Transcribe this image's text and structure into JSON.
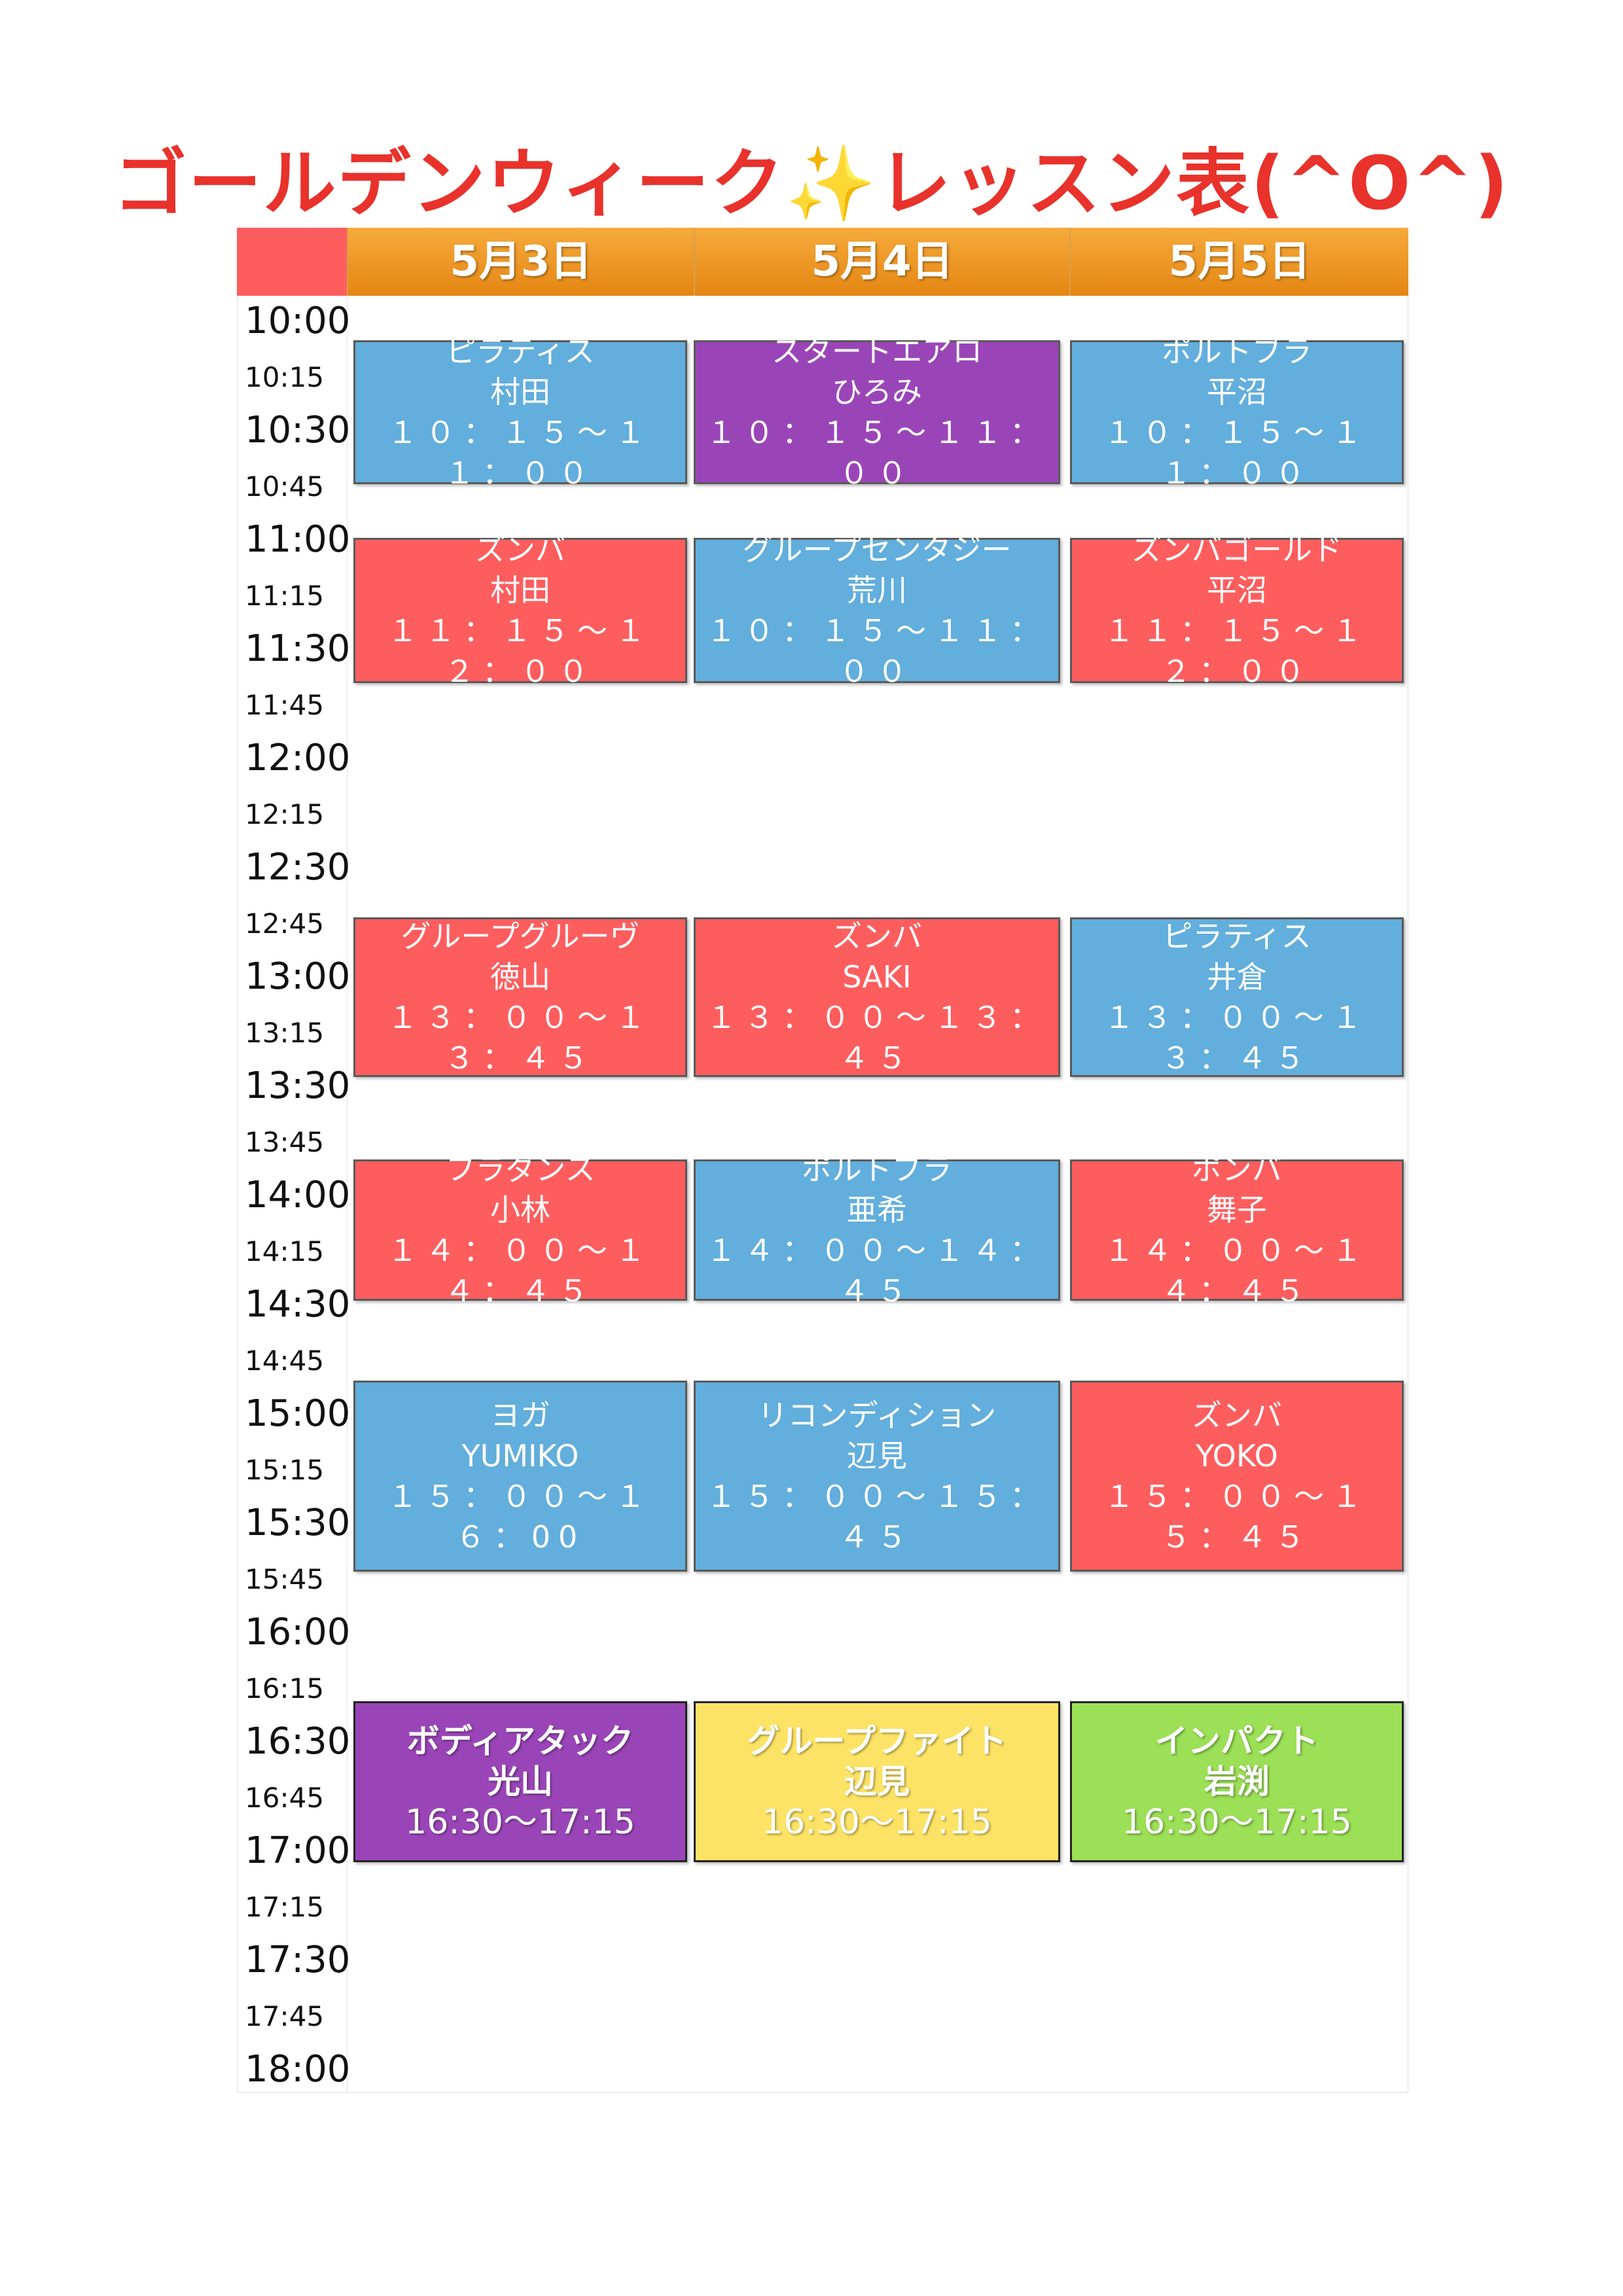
{
  "title": {
    "main": "ゴールデンウィーク",
    "sparkle": "✨",
    "suffix": "レッスン表(^O^)"
  },
  "days": [
    "5月3日",
    "5月4日",
    "5月5日"
  ],
  "times": [
    {
      "label": "10:00",
      "major": true
    },
    {
      "label": "10:15",
      "major": false
    },
    {
      "label": "10:30",
      "major": true
    },
    {
      "label": "10:45",
      "major": false
    },
    {
      "label": "11:00",
      "major": true
    },
    {
      "label": "11:15",
      "major": false
    },
    {
      "label": "11:30",
      "major": true
    },
    {
      "label": "11:45",
      "major": false
    },
    {
      "label": "12:00",
      "major": true
    },
    {
      "label": "12:15",
      "major": false
    },
    {
      "label": "12:30",
      "major": true
    },
    {
      "label": "12:45",
      "major": false
    },
    {
      "label": "13:00",
      "major": true
    },
    {
      "label": "13:15",
      "major": false
    },
    {
      "label": "13:30",
      "major": true
    },
    {
      "label": "13:45",
      "major": false
    },
    {
      "label": "14:00",
      "major": true
    },
    {
      "label": "14:15",
      "major": false
    },
    {
      "label": "14:30",
      "major": true
    },
    {
      "label": "14:45",
      "major": false
    },
    {
      "label": "15:00",
      "major": true
    },
    {
      "label": "15:15",
      "major": false
    },
    {
      "label": "15:30",
      "major": true
    },
    {
      "label": "15:45",
      "major": false
    },
    {
      "label": "16:00",
      "major": true
    },
    {
      "label": "16:15",
      "major": false
    },
    {
      "label": "16:30",
      "major": true
    },
    {
      "label": "16:45",
      "major": false
    },
    {
      "label": "17:00",
      "major": true
    },
    {
      "label": "17:15",
      "major": false
    },
    {
      "label": "17:30",
      "major": true
    },
    {
      "label": "17:45",
      "major": false
    },
    {
      "label": "18:00",
      "major": true
    }
  ],
  "lessons": [
    {
      "day": 0,
      "name": "ピラティス",
      "instructor": "村田",
      "time": "１０：１５〜１１：００",
      "color": "blue"
    },
    {
      "day": 1,
      "name": "スタートエアロ",
      "instructor": "ひろみ",
      "time": "１０：１５〜１１：００",
      "color": "purple"
    },
    {
      "day": 2,
      "name": "ポルトブラ",
      "instructor": "平沼",
      "time": "１０：１５〜１１：００",
      "color": "blue"
    },
    {
      "day": 0,
      "name": "ズンバ",
      "instructor": "村田",
      "time": "１１：１５〜１２：００",
      "color": "red"
    },
    {
      "day": 1,
      "name": "グループセンタジー",
      "instructor": "荒川",
      "time": "１０：１５〜１１：００",
      "color": "blue"
    },
    {
      "day": 2,
      "name": "ズンバゴールド",
      "instructor": "平沼",
      "time": "１１：１５〜１２：００",
      "color": "red"
    },
    {
      "day": 0,
      "name": "グループグルーヴ",
      "instructor": "徳山",
      "time": "１３：００〜１３：４５",
      "color": "red"
    },
    {
      "day": 1,
      "name": "ズンバ",
      "instructor": "SAKI",
      "time": "１３：００〜１３：４５",
      "color": "red"
    },
    {
      "day": 2,
      "name": "ピラティス",
      "instructor": "井倉",
      "time": "１３：００〜１３：４５",
      "color": "blue"
    },
    {
      "day": 0,
      "name": "フラダンス",
      "instructor": "小林",
      "time": "１４：００〜１４：４５",
      "color": "red"
    },
    {
      "day": 1,
      "name": "ポルトブラ",
      "instructor": "亜希",
      "time": "１４：００〜１４：４５",
      "color": "blue"
    },
    {
      "day": 2,
      "name": "ポンバ",
      "instructor": "舞子",
      "time": "１４：００〜１４：４５",
      "color": "red"
    },
    {
      "day": 0,
      "name": "ヨガ",
      "instructor": "YUMIKO",
      "time": "１５：００〜１６：00",
      "color": "blue"
    },
    {
      "day": 1,
      "name": "リコンディション",
      "instructor": "辺見",
      "time": "１５：００〜１５：４５",
      "color": "blue"
    },
    {
      "day": 2,
      "name": "ズンバ",
      "instructor": "YOKO",
      "time": "１５：００〜１５：４５",
      "color": "red"
    },
    {
      "day": 0,
      "name": "ボディアタック",
      "instructor": "光山",
      "time": "16:30〜17:15",
      "color": "purple"
    },
    {
      "day": 1,
      "name": "グループファイト",
      "instructor": "辺見",
      "time": "16:30〜17:15",
      "color": "yellow"
    },
    {
      "day": 2,
      "name": "インパクト",
      "instructor": "岩渕",
      "time": "16:30〜17:15",
      "color": "green"
    }
  ]
}
